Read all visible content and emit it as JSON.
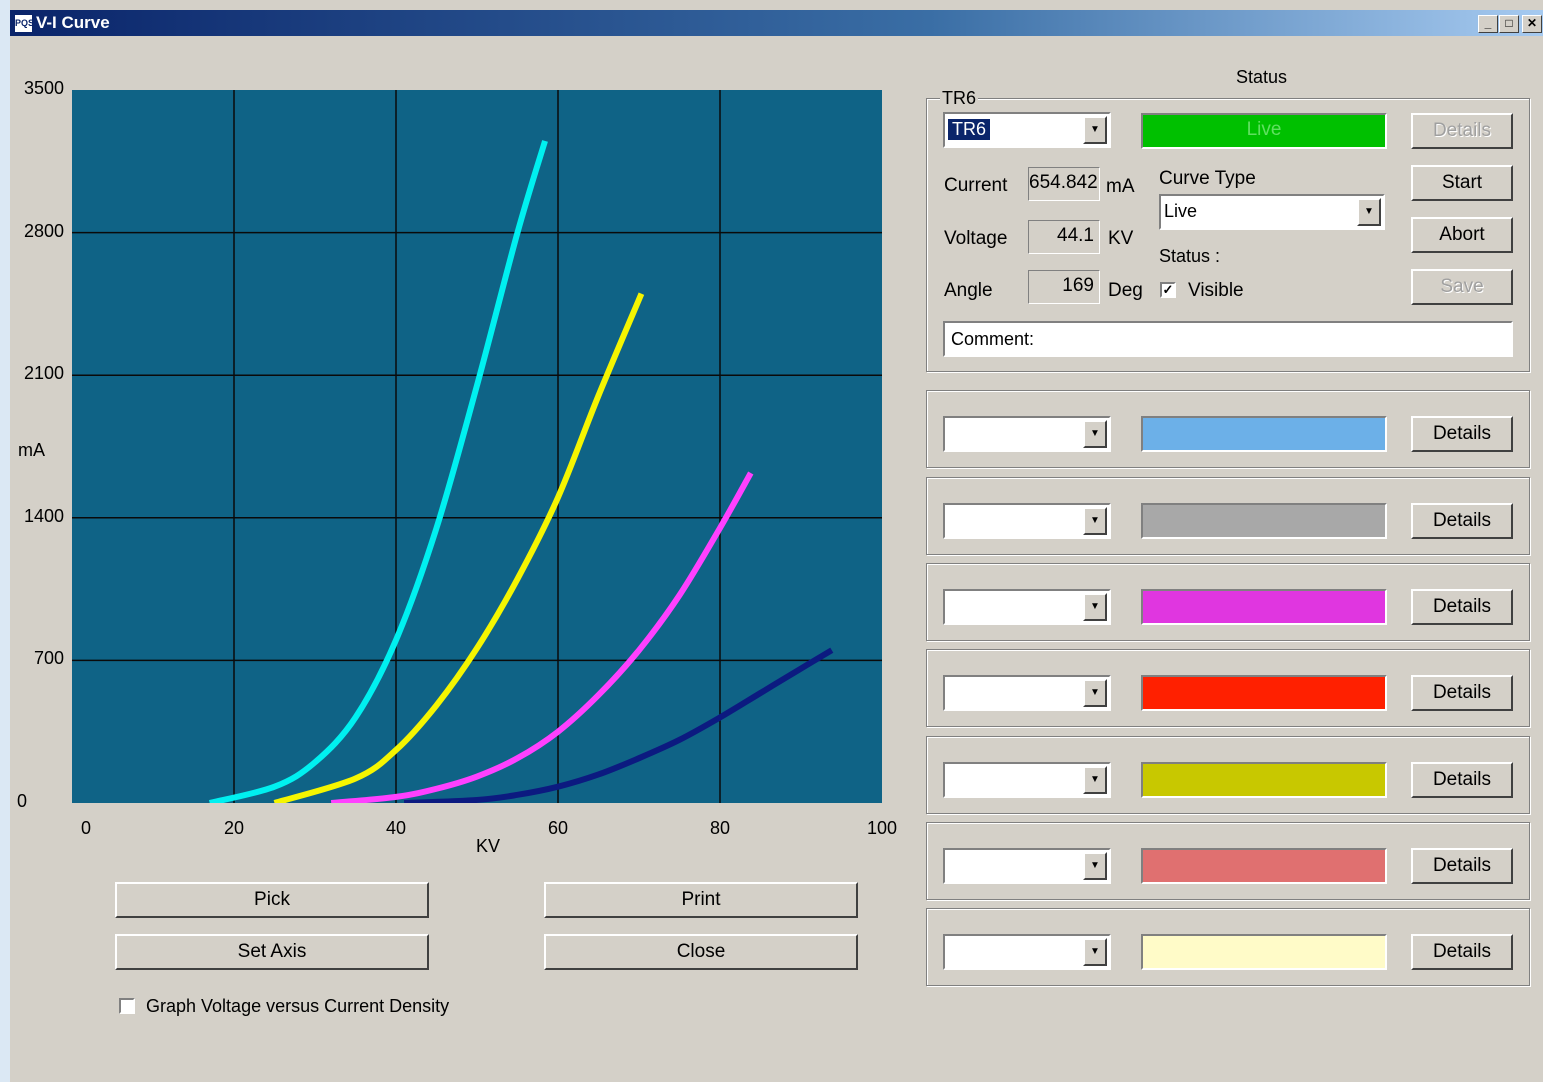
{
  "window": {
    "title": "V-I Curve",
    "icon_text": "PQS"
  },
  "chart_data": {
    "type": "line",
    "xlabel": "KV",
    "ylabel": "mA",
    "xlim": [
      0,
      100
    ],
    "ylim": [
      0,
      3500
    ],
    "x_ticks": [
      "0",
      "20",
      "40",
      "60",
      "80",
      "100"
    ],
    "y_ticks": [
      "0",
      "700",
      "1400",
      "2100",
      "2800",
      "3500"
    ],
    "grid": true,
    "background": "#0f6386",
    "series": [
      {
        "color": "#00f0f0",
        "x": [
          17,
          25,
          30,
          35,
          40,
          45,
          50,
          55,
          58.4
        ],
        "y": [
          0,
          80,
          200,
          420,
          800,
          1350,
          2050,
          2800,
          3250
        ]
      },
      {
        "color": "#f5f500",
        "x": [
          25,
          35,
          40,
          45,
          50,
          55,
          60,
          65,
          70.3
        ],
        "y": [
          0,
          120,
          260,
          480,
          760,
          1100,
          1500,
          2000,
          2500
        ]
      },
      {
        "color": "#ff40ff",
        "x": [
          32,
          40,
          45,
          50,
          55,
          60,
          65,
          70,
          75,
          80,
          83.8
        ],
        "y": [
          0,
          30,
          70,
          130,
          220,
          350,
          530,
          750,
          1020,
          1350,
          1620
        ]
      },
      {
        "color": "#0c1a80",
        "x": [
          41,
          50,
          55,
          60,
          65,
          70,
          75,
          80,
          85,
          90,
          93.8
        ],
        "y": [
          0,
          15,
          40,
          80,
          140,
          220,
          310,
          420,
          540,
          660,
          750
        ]
      }
    ]
  },
  "buttons": {
    "pick": "Pick",
    "print": "Print",
    "set_axis": "Set Axis",
    "close": "Close"
  },
  "graph_option": {
    "label": "Graph Voltage versus Current Density",
    "checked": false
  },
  "status_header": "Status",
  "main_group": {
    "title": "TR6",
    "selected": "TR6",
    "status_text": "Live",
    "status_color": "#00c000",
    "details_label": "Details",
    "current_label": "Current",
    "current_value": "654.842",
    "current_unit": "mA",
    "voltage_label": "Voltage",
    "voltage_value": "44.1",
    "voltage_unit": "KV",
    "angle_label": "Angle",
    "angle_value": "169",
    "angle_unit": "Deg",
    "curve_type_label": "Curve Type",
    "curve_type_value": "Live",
    "status_label": "Status :",
    "visible_label": "Visible",
    "visible_checked": true,
    "start_label": "Start",
    "abort_label": "Abort",
    "save_label": "Save",
    "comment_value": "Comment:"
  },
  "series_slots": [
    {
      "color": "#6cb0e8",
      "details_label": "Details"
    },
    {
      "color": "#a8a8a8",
      "details_label": "Details"
    },
    {
      "color": "#e036e0",
      "details_label": "Details"
    },
    {
      "color": "#ff2000",
      "details_label": "Details"
    },
    {
      "color": "#c8c800",
      "details_label": "Details"
    },
    {
      "color": "#e07070",
      "details_label": "Details"
    },
    {
      "color": "#fffbc8",
      "details_label": "Details"
    }
  ]
}
